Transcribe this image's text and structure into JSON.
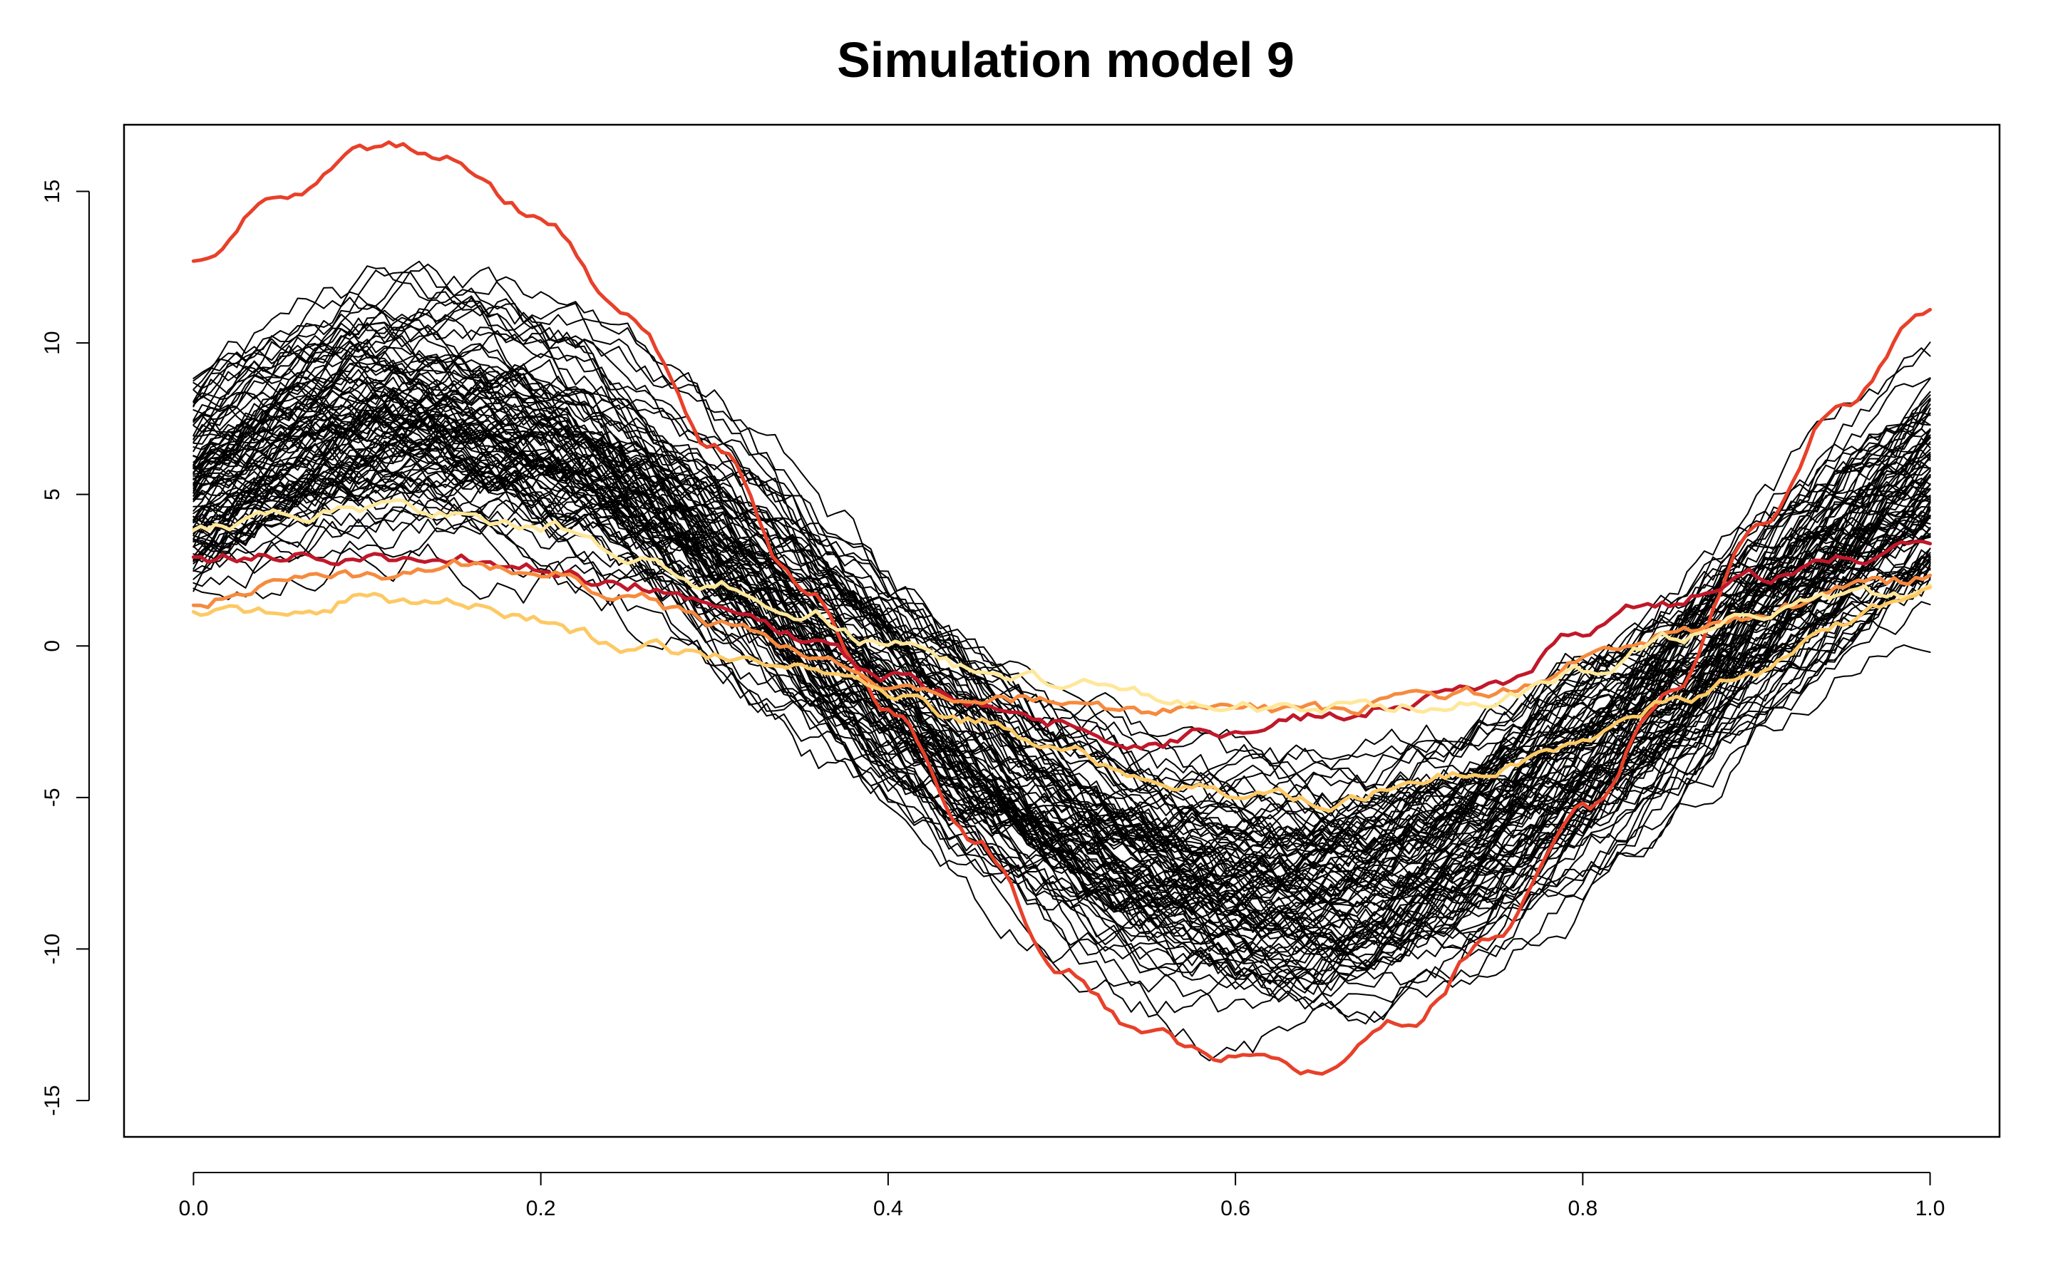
{
  "chart_data": {
    "type": "line",
    "title": "Simulation model 9",
    "xlabel": "",
    "ylabel": "",
    "xlim": [
      -0.04,
      1.04
    ],
    "ylim": [
      -16.2,
      17.2
    ],
    "x_ticks": [
      0.0,
      0.2,
      0.4,
      0.6,
      0.8,
      1.0
    ],
    "x_tick_labels": [
      "0.0",
      "0.2",
      "0.4",
      "0.6",
      "0.8",
      "1.0"
    ],
    "y_ticks": [
      -15,
      -10,
      -5,
      0,
      5,
      10,
      15
    ],
    "y_tick_labels": [
      "-15",
      "-10",
      "-5",
      "0",
      "5",
      "10",
      "15"
    ],
    "grid": false,
    "legend": "none",
    "background_curves": {
      "count": 100,
      "color": "#000000",
      "model": "y = a*sin(2*pi*(x - phase)) + b + noise",
      "amplitude_range": [
        5,
        11
      ],
      "offset_range": [
        -2,
        1.5
      ],
      "phase_range": [
        -0.08,
        0.02
      ]
    },
    "series": [
      {
        "color": "#E8402A",
        "x": [
          0.0,
          0.05,
          0.1,
          0.12,
          0.15,
          0.2,
          0.25,
          0.3,
          0.35,
          0.4,
          0.45,
          0.5,
          0.55,
          0.6,
          0.64,
          0.7,
          0.75,
          0.8,
          0.85,
          0.9,
          0.95,
          1.0
        ],
        "y": [
          12.6,
          14.8,
          16.4,
          16.6,
          16.0,
          14.2,
          11.0,
          6.5,
          2.0,
          -2.0,
          -6.5,
          -10.5,
          -13.0,
          -13.6,
          -13.9,
          -12.3,
          -9.5,
          -5.5,
          -1.5,
          3.8,
          8.0,
          11.0
        ]
      },
      {
        "color": "#C0182A",
        "x": [
          0.0,
          0.05,
          0.1,
          0.15,
          0.2,
          0.25,
          0.3,
          0.35,
          0.4,
          0.45,
          0.5,
          0.55,
          0.6,
          0.65,
          0.7,
          0.75,
          0.8,
          0.85,
          0.9,
          0.95,
          1.0
        ],
        "y": [
          2.8,
          3.1,
          3.0,
          2.9,
          2.5,
          2.0,
          1.3,
          0.3,
          -1.0,
          -1.8,
          -2.5,
          -3.2,
          -2.8,
          -2.3,
          -1.9,
          -1.2,
          0.5,
          1.5,
          2.3,
          2.8,
          3.6
        ]
      },
      {
        "color": "#F68A3E",
        "x": [
          0.0,
          0.05,
          0.1,
          0.15,
          0.2,
          0.25,
          0.3,
          0.35,
          0.4,
          0.45,
          0.5,
          0.55,
          0.6,
          0.65,
          0.7,
          0.75,
          0.8,
          0.85,
          0.9,
          0.95,
          1.0
        ],
        "y": [
          1.5,
          2.2,
          2.3,
          2.7,
          2.4,
          1.6,
          0.8,
          -0.2,
          -1.2,
          -1.6,
          -1.8,
          -2.1,
          -2.2,
          -2.1,
          -1.8,
          -1.6,
          -0.5,
          0.4,
          1.0,
          1.8,
          2.2
        ]
      },
      {
        "color": "#FFE79A",
        "x": [
          0.0,
          0.05,
          0.1,
          0.15,
          0.2,
          0.25,
          0.3,
          0.35,
          0.4,
          0.45,
          0.5,
          0.55,
          0.6,
          0.65,
          0.7,
          0.75,
          0.8,
          0.85,
          0.9,
          0.95,
          1.0
        ],
        "y": [
          3.8,
          4.3,
          4.5,
          4.4,
          4.0,
          3.0,
          2.0,
          1.2,
          0.0,
          -0.8,
          -1.2,
          -1.6,
          -2.0,
          -2.1,
          -2.0,
          -1.8,
          -1.0,
          0.2,
          1.0,
          1.6,
          1.8
        ]
      },
      {
        "color": "#FDC964",
        "x": [
          0.0,
          0.05,
          0.1,
          0.15,
          0.2,
          0.25,
          0.3,
          0.35,
          0.4,
          0.45,
          0.5,
          0.55,
          0.6,
          0.65,
          0.7,
          0.75,
          0.8,
          0.85,
          0.9,
          0.95,
          1.0
        ],
        "y": [
          1.0,
          1.0,
          1.6,
          1.4,
          0.8,
          0.0,
          -0.3,
          -0.5,
          -1.6,
          -2.5,
          -3.5,
          -4.3,
          -4.8,
          -5.2,
          -4.6,
          -4.0,
          -3.2,
          -2.0,
          -0.8,
          0.6,
          2.0
        ]
      }
    ]
  }
}
